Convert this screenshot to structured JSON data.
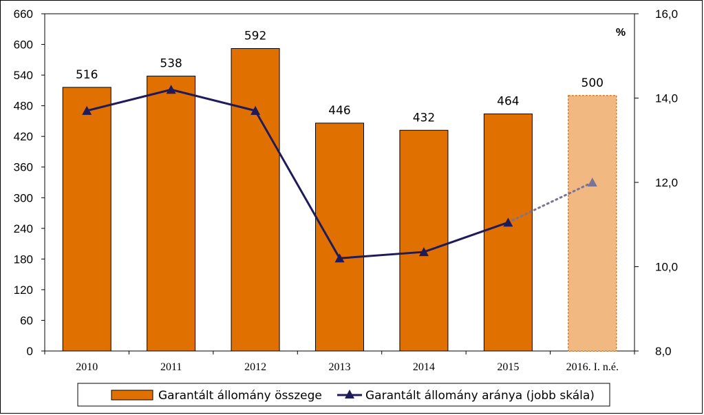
{
  "chart_data": {
    "type": "bar+line",
    "categories": [
      "2010",
      "2011",
      "2012",
      "2013",
      "2014",
      "2015",
      "2016. I. n.é."
    ],
    "series": [
      {
        "name": "Garantált állomány összege",
        "type": "bar",
        "axis": "left",
        "values": [
          516,
          538,
          592,
          446,
          432,
          464,
          500
        ],
        "data_labels": [
          "516",
          "538",
          "592",
          "446",
          "432",
          "464",
          "500"
        ],
        "estimate_last": true
      },
      {
        "name": "Garantált állomány aránya (jobb skála)",
        "type": "line",
        "axis": "right",
        "values": [
          13.7,
          14.2,
          13.7,
          10.2,
          10.35,
          11.05,
          12.0
        ],
        "estimate_last": true
      }
    ],
    "y_left": {
      "lim": [
        0,
        660
      ],
      "ticks": [
        "0",
        "60",
        "120",
        "180",
        "240",
        "300",
        "360",
        "420",
        "480",
        "540",
        "600",
        "660"
      ]
    },
    "y_right": {
      "lim": [
        8,
        16
      ],
      "ticks": [
        "8,0",
        "10,0",
        "12,0",
        "14,0",
        "16,0"
      ],
      "unit": "%"
    },
    "legend_position": "bottom",
    "colors": {
      "bar": "#e07000",
      "bar_estimate": "#f2b882",
      "line": "#1f1a5a",
      "line_estimate": "#7a7494",
      "border": "#000000"
    }
  }
}
